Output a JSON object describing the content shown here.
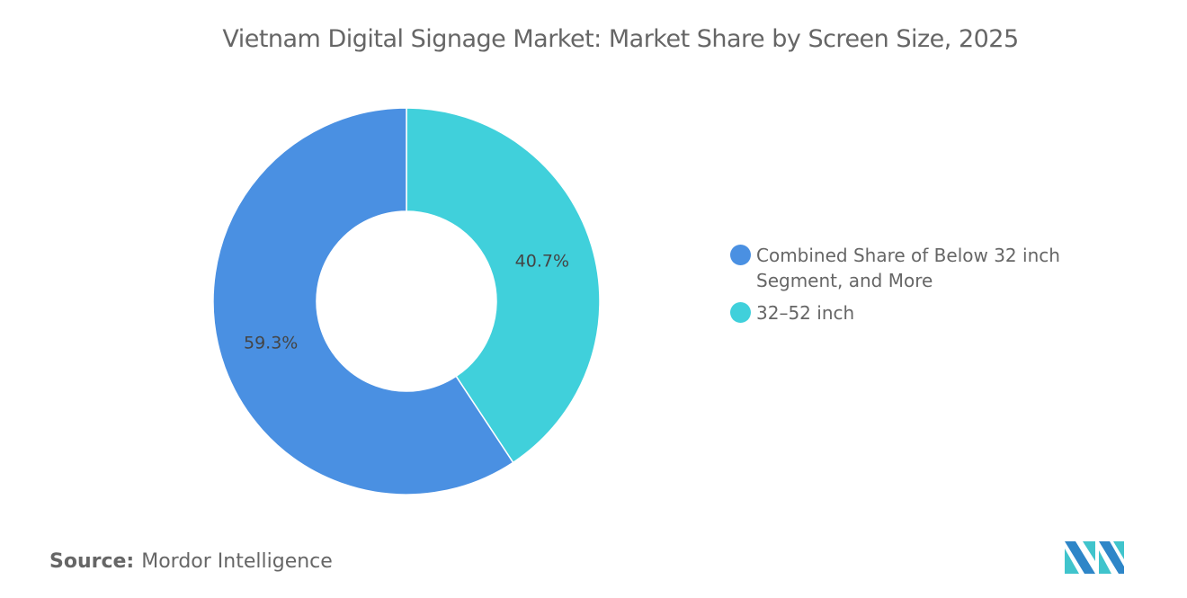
{
  "chart_data": {
    "type": "pie",
    "donut": true,
    "title": "Vietnam Digital Signage Market: Market Share by Screen Size, 2025",
    "categories": [
      "32–52 inch",
      "Combined Share of Below 32 inch Segment, and More"
    ],
    "values": [
      40.7,
      59.3
    ],
    "data_labels": [
      "40.7%",
      "59.3%"
    ],
    "colors": [
      "#40D0DB",
      "#4A90E2"
    ],
    "legend": {
      "placement": "right",
      "entries": [
        {
          "label": "Combined Share of Below 32 inch Segment, and More",
          "color": "#4A90E2"
        },
        {
          "label": "32–52 inch",
          "color": "#40D0DB"
        }
      ]
    }
  },
  "source": {
    "label": "Source:",
    "value": "Mordor Intelligence"
  },
  "logo": {
    "name": "mordor-intelligence-logo",
    "colors": [
      "#2E86C8",
      "#40C4CC"
    ]
  }
}
